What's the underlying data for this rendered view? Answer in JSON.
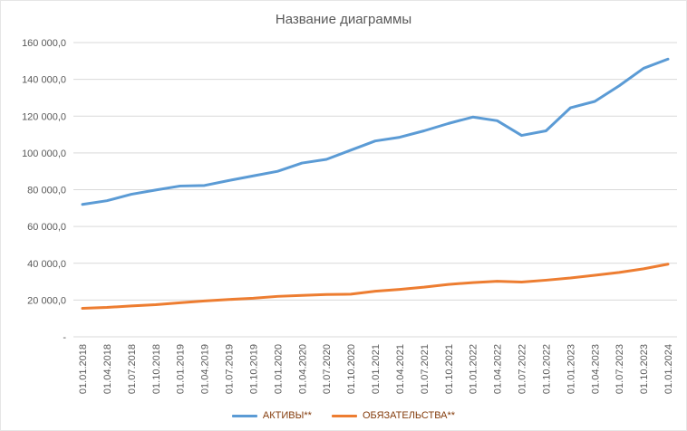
{
  "chart_data": {
    "type": "line",
    "title": "Название диаграммы",
    "xlabel": "",
    "ylabel": "",
    "ylim": [
      0,
      160000
    ],
    "grid": "horizontal",
    "legend_position": "bottom",
    "x": [
      "01.01.2018",
      "01.04.2018",
      "01.07.2018",
      "01.10.2018",
      "01.01.2019",
      "01.04.2019",
      "01.07.2019",
      "01.10.2019",
      "01.01.2020",
      "01.04.2020",
      "01.07.2020",
      "01.10.2020",
      "01.01.2021",
      "01.04.2021",
      "01.07.2021",
      "01.10.2021",
      "01.01.2022",
      "01.04.2022",
      "01.07.2022",
      "01.10.2022",
      "01.01.2023",
      "01.04.2023",
      "01.07.2023",
      "01.10.2023",
      "01.01.2024"
    ],
    "series": [
      {
        "id": "aktivy",
        "name": "АКТИВЫ**",
        "color": "#5B9BD5",
        "values": [
          72000,
          74000,
          77500,
          79800,
          82000,
          82300,
          85000,
          87500,
          90000,
          94500,
          96500,
          101500,
          106500,
          108500,
          112000,
          116000,
          119500,
          117500,
          109500,
          112000,
          124500,
          128000,
          136500,
          146000,
          151000
        ]
      },
      {
        "id": "obyazatelstva",
        "name": "ОБЯЗАТЕЛЬСТВА**",
        "color": "#ED7D31",
        "values": [
          15500,
          16000,
          16800,
          17500,
          18500,
          19500,
          20300,
          21000,
          22000,
          22500,
          23000,
          23200,
          24800,
          25800,
          27000,
          28500,
          29500,
          30200,
          29800,
          30800,
          32000,
          33500,
          35000,
          37000,
          39500
        ]
      }
    ],
    "yticks": [
      {
        "value": 160000,
        "label": "160 000,0"
      },
      {
        "value": 140000,
        "label": "140 000,0"
      },
      {
        "value": 120000,
        "label": "120 000,0"
      },
      {
        "value": 100000,
        "label": "100 000,0"
      },
      {
        "value": 80000,
        "label": "80 000,0"
      },
      {
        "value": 60000,
        "label": "60 000,0"
      },
      {
        "value": 40000,
        "label": "40 000,0"
      },
      {
        "value": 20000,
        "label": "20 000,0"
      },
      {
        "value": 0,
        "label": "-"
      }
    ],
    "colors": {
      "gridline": "#D9D9D9",
      "axis_text": "#595959",
      "title_text": "#595959",
      "legend_text": "#843C0C",
      "background": "#FFFFFF"
    }
  }
}
